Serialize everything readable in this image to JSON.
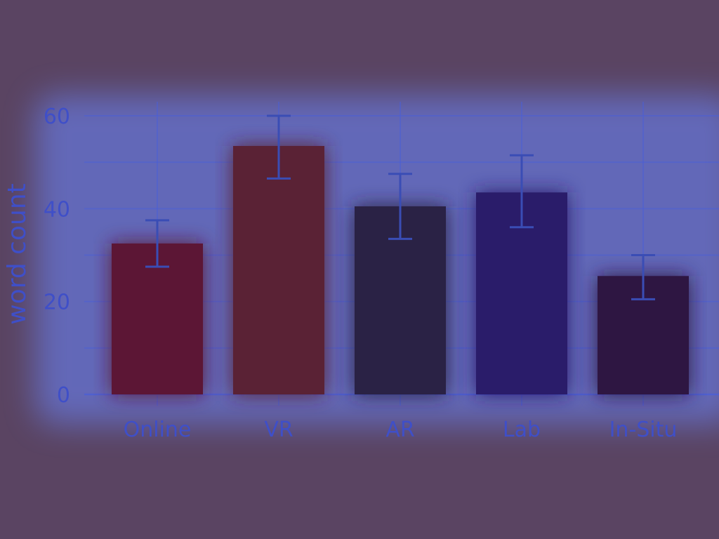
{
  "chart_data": {
    "type": "bar",
    "categories": [
      "Online",
      "VR",
      "AR",
      "Lab",
      "In-Situ"
    ],
    "values": [
      32.5,
      53.5,
      40.5,
      43.5,
      25.5
    ],
    "error_low": [
      27.5,
      46.5,
      33.5,
      36.0,
      20.5
    ],
    "error_high": [
      37.5,
      60.0,
      47.5,
      51.5,
      30.0
    ],
    "bar_colors": [
      "#5c1736",
      "#5a2236",
      "#2b2145",
      "#2c1f6a",
      "#2f1742"
    ],
    "accent_color": "#4a6cff",
    "background_color": "#5a4462",
    "ylabel": "word count",
    "xlabel": "",
    "title": "",
    "yticks": [
      0,
      20,
      40,
      60
    ],
    "ylim": [
      0,
      60
    ],
    "grid": true
  }
}
